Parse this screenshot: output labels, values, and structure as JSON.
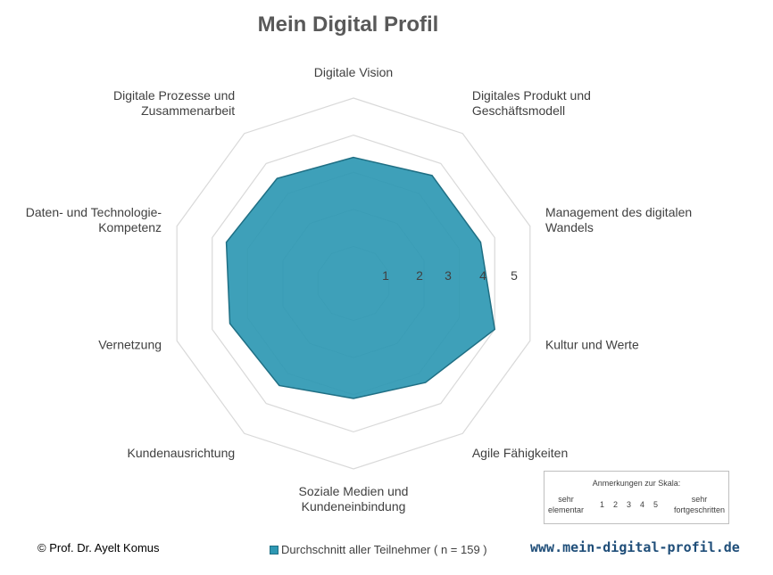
{
  "chart_data": {
    "type": "radar",
    "title": "Mein Digital Profil",
    "categories": [
      "Digitale Vision",
      "Digitales Produkt und Geschäftsmodell",
      "Management des digitalen Wandels",
      "Kultur und Werte",
      "Agile Fähigkeiten",
      "Soziale Medien und Kundeneinbindung",
      "Kundenausrichtung",
      "Vernetzung",
      "Daten- und Technologie-Kompetenz",
      "Digitale Prozesse und Zusammenarbeit"
    ],
    "category_lines": [
      [
        "Digitale Vision"
      ],
      [
        "Digitales Produkt und",
        "Geschäftsmodell"
      ],
      [
        "Management des digitalen",
        "Wandels"
      ],
      [
        "Kultur und Werte"
      ],
      [
        "Agile Fähigkeiten"
      ],
      [
        "Soziale Medien und",
        "Kundeneinbindung"
      ],
      [
        "Kundenausrichtung"
      ],
      [
        "Vernetzung"
      ],
      [
        "Daten- und Technologie-",
        "Kompetenz"
      ],
      [
        "Digitale Prozesse und",
        "Zusammenarbeit"
      ]
    ],
    "series": [
      {
        "name": "Durchschnitt aller Teilnehmer ( n = 159 )",
        "values": [
          3.4,
          3.6,
          3.6,
          4.0,
          3.3,
          3.1,
          3.4,
          3.5,
          3.6,
          3.5
        ]
      }
    ],
    "radial_ticks": [
      "1",
      "2",
      "3",
      "4",
      "5"
    ],
    "rlim": [
      0,
      5
    ],
    "grid": true,
    "legend_position": "bottom",
    "colors": {
      "fill": "#2e98b3",
      "stroke": "#1f6f84",
      "grid": "#d9d9d9"
    }
  },
  "scale_note": {
    "heading": "Anmerkungen zur Skala:",
    "low_label": [
      "sehr",
      "elementar"
    ],
    "high_label": [
      "sehr",
      "fortgeschritten"
    ],
    "numbers": [
      "1",
      "2",
      "3",
      "4",
      "5"
    ]
  },
  "footer": {
    "copyright": "© Prof. Dr. Ayelt Komus",
    "website": "www.mein-digital-profil.de"
  }
}
